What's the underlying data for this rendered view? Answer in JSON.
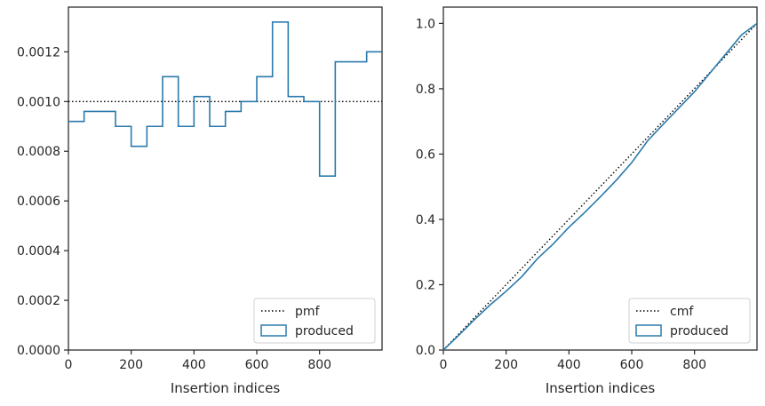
{
  "chart_data": [
    {
      "type": "line",
      "xlabel": "Insertion indices",
      "ylabel": "",
      "xlim": [
        0,
        999
      ],
      "ylim": [
        0,
        0.00138
      ],
      "x_ticks": [
        0,
        200,
        400,
        600,
        800
      ],
      "x_tick_labels": [
        "0",
        "200",
        "400",
        "600",
        "800"
      ],
      "y_ticks": [
        0,
        0.0002,
        0.0004,
        0.0006,
        0.0008,
        0.001,
        0.0012
      ],
      "y_tick_labels": [
        "0.0000",
        "0.0002",
        "0.0004",
        "0.0006",
        "0.0008",
        "0.0010",
        "0.0012"
      ],
      "legend_position": "lower-right",
      "series": [
        {
          "name": "pmf",
          "style": "dotted",
          "color": "#000000",
          "x": [
            0,
            999
          ],
          "values": [
            0.001,
            0.001
          ]
        },
        {
          "name": "produced",
          "style": "step",
          "color": "#2a7aac",
          "bin_edges": [
            0,
            50,
            150,
            200,
            250,
            300,
            350,
            400,
            450,
            500,
            550,
            600,
            650,
            700,
            750,
            800,
            850,
            950,
            999
          ],
          "values": [
            0.00092,
            0.00096,
            0.0009,
            0.00082,
            0.0009,
            0.0011,
            0.0009,
            0.00102,
            0.0009,
            0.00096,
            0.001,
            0.0011,
            0.00132,
            0.00102,
            0.001,
            0.0007,
            0.00116,
            0.0012
          ]
        }
      ]
    },
    {
      "type": "line",
      "xlabel": "Insertion indices",
      "ylabel": "",
      "xlim": [
        0,
        999
      ],
      "ylim": [
        0,
        1.05
      ],
      "x_ticks": [
        0,
        200,
        400,
        600,
        800
      ],
      "x_tick_labels": [
        "0",
        "200",
        "400",
        "600",
        "800"
      ],
      "y_ticks": [
        0,
        0.2,
        0.4,
        0.6,
        0.8,
        1.0
      ],
      "y_tick_labels": [
        "0.0",
        "0.2",
        "0.4",
        "0.6",
        "0.8",
        "1.0"
      ],
      "legend_position": "lower-right",
      "series": [
        {
          "name": "cmf",
          "style": "dotted",
          "color": "#000000",
          "x": [
            0,
            999
          ],
          "values": [
            0,
            1
          ]
        },
        {
          "name": "produced",
          "style": "step",
          "color": "#2a7aac",
          "x": [
            0,
            50,
            100,
            150,
            200,
            250,
            300,
            350,
            400,
            450,
            500,
            550,
            600,
            650,
            700,
            750,
            800,
            850,
            900,
            950,
            999
          ],
          "values": [
            0,
            0.046,
            0.094,
            0.139,
            0.18,
            0.225,
            0.28,
            0.325,
            0.376,
            0.421,
            0.469,
            0.519,
            0.574,
            0.64,
            0.691,
            0.741,
            0.791,
            0.849,
            0.907,
            0.965,
            1.0
          ]
        }
      ]
    }
  ]
}
